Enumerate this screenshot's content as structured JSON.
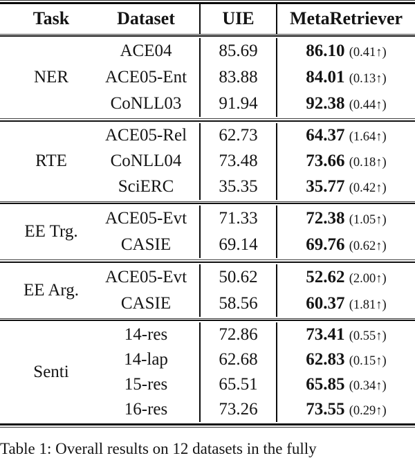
{
  "table": {
    "columns": [
      "Task",
      "Dataset",
      "UIE",
      "MetaRetriever"
    ],
    "groups": [
      {
        "task": "NER",
        "rows": [
          {
            "dataset": "ACE04",
            "uie": "85.69",
            "meta": "86.10",
            "delta": "(0.41↑)"
          },
          {
            "dataset": "ACE05-Ent",
            "uie": "83.88",
            "meta": "84.01",
            "delta": "(0.13↑)"
          },
          {
            "dataset": "CoNLL03",
            "uie": "91.94",
            "meta": "92.38",
            "delta": "(0.44↑)"
          }
        ]
      },
      {
        "task": "RTE",
        "rows": [
          {
            "dataset": "ACE05-Rel",
            "uie": "62.73",
            "meta": "64.37",
            "delta": "(1.64↑)"
          },
          {
            "dataset": "CoNLL04",
            "uie": "73.48",
            "meta": "73.66",
            "delta": "(0.18↑)"
          },
          {
            "dataset": "SciERC",
            "uie": "35.35",
            "meta": "35.77",
            "delta": "(0.42↑)"
          }
        ]
      },
      {
        "task": "EE Trg.",
        "rows": [
          {
            "dataset": "ACE05-Evt",
            "uie": "71.33",
            "meta": "72.38",
            "delta": "(1.05↑)"
          },
          {
            "dataset": "CASIE",
            "uie": "69.14",
            "meta": "69.76",
            "delta": "(0.62↑)"
          }
        ]
      },
      {
        "task": "EE Arg.",
        "rows": [
          {
            "dataset": "ACE05-Evt",
            "uie": "50.62",
            "meta": "52.62",
            "delta": "(2.00↑)"
          },
          {
            "dataset": "CASIE",
            "uie": "58.56",
            "meta": "60.37",
            "delta": "(1.81↑)"
          }
        ]
      },
      {
        "task": "Senti",
        "rows": [
          {
            "dataset": "14-res",
            "uie": "72.86",
            "meta": "73.41",
            "delta": "(0.55↑)"
          },
          {
            "dataset": "14-lap",
            "uie": "62.68",
            "meta": "62.83",
            "delta": "(0.15↑)"
          },
          {
            "dataset": "15-res",
            "uie": "65.51",
            "meta": "65.85",
            "delta": "(0.34↑)"
          },
          {
            "dataset": "16-res",
            "uie": "73.26",
            "meta": "73.55",
            "delta": "(0.29↑)"
          }
        ]
      }
    ]
  },
  "caption": "Table 1: Overall results on 12 datasets in the fully",
  "colors": {
    "background": "#ffffff",
    "text": "#141414",
    "rule": "#0a0a0a"
  }
}
